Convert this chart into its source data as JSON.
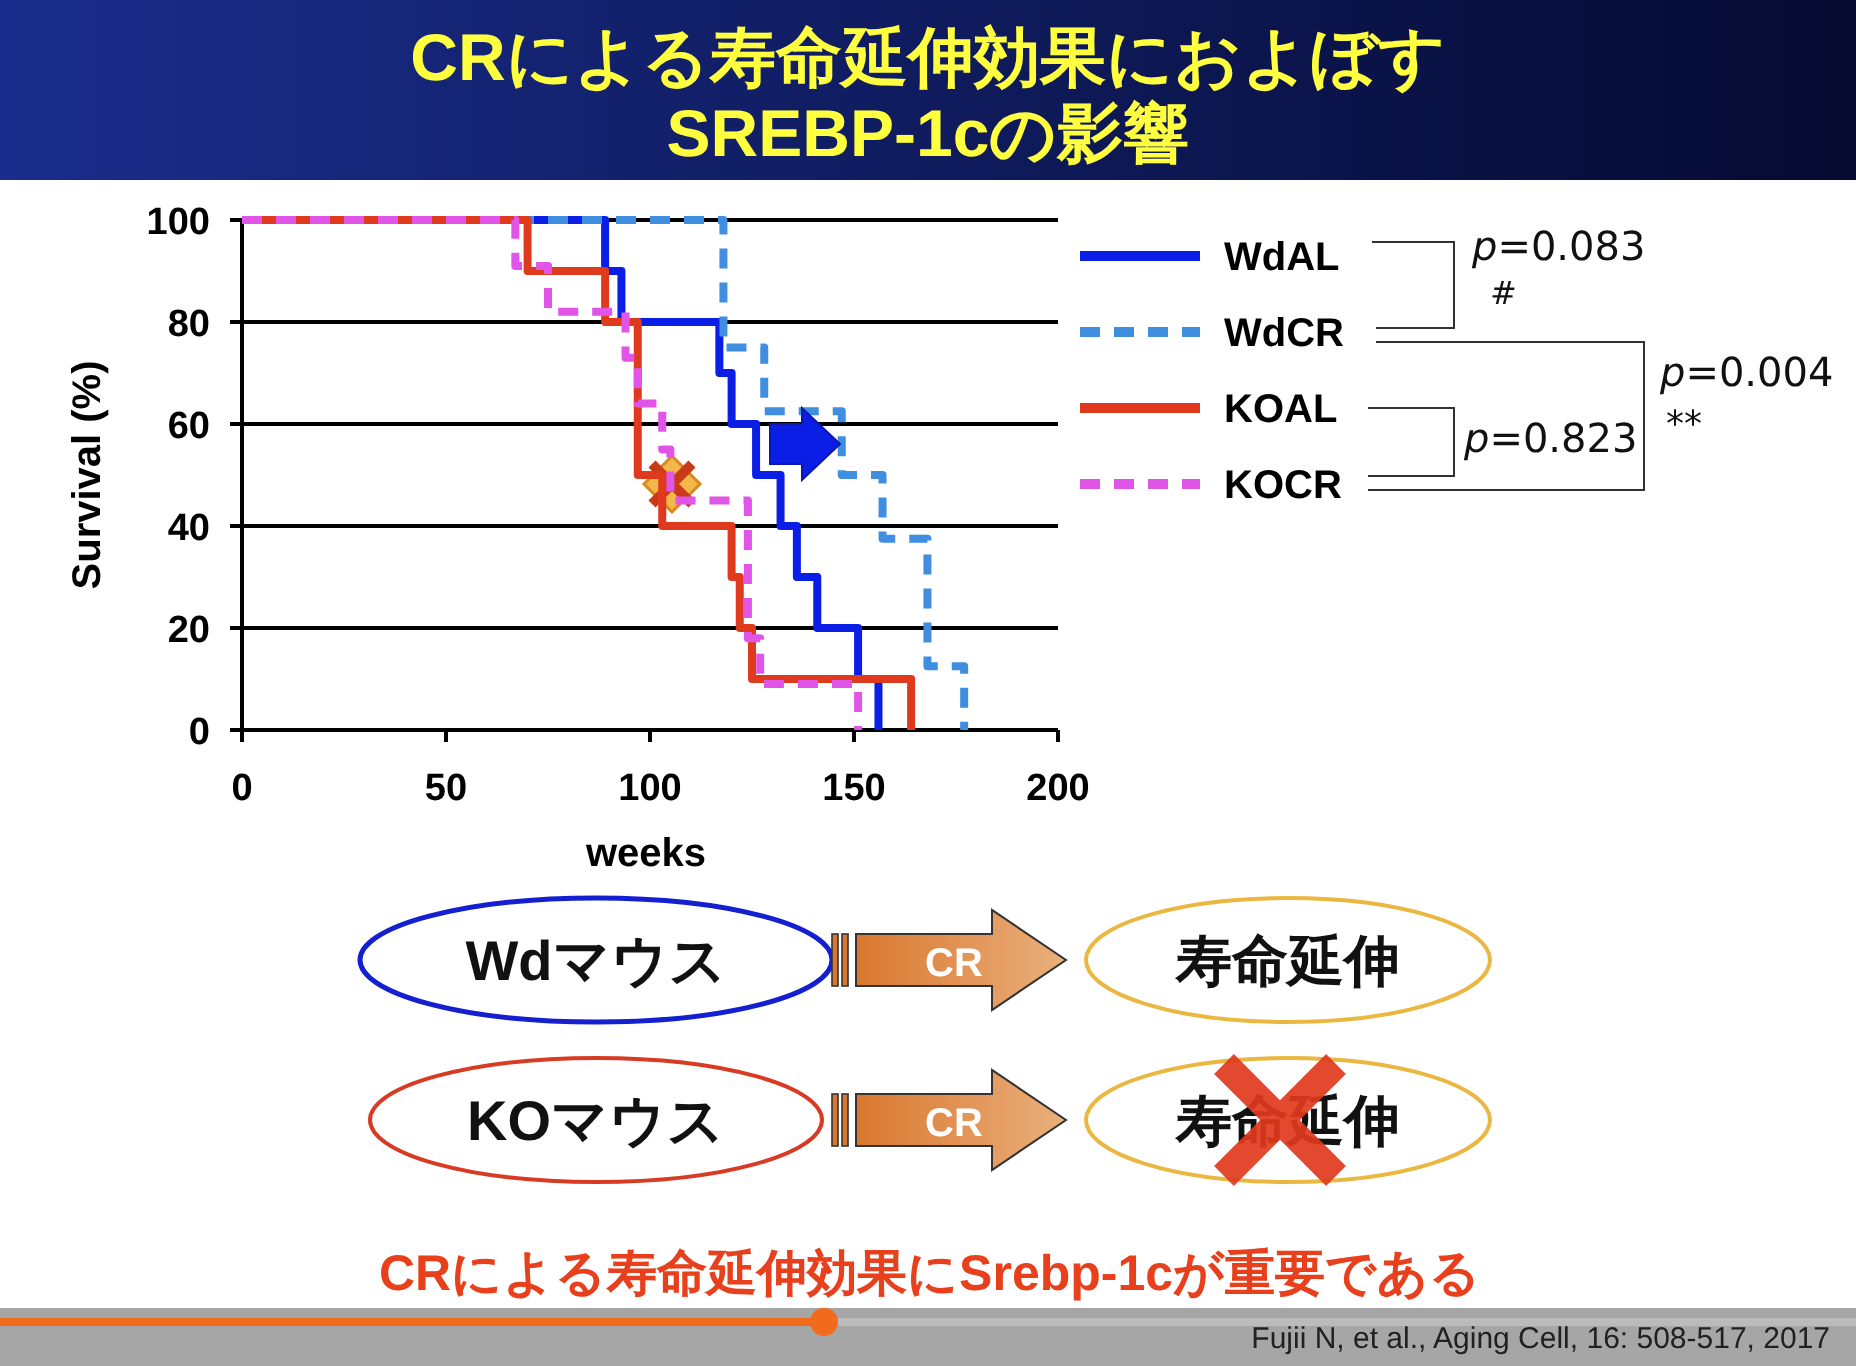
{
  "chart_data": {
    "type": "step",
    "title": "CRによる寿命延伸効果におよぼす\nSREBP-1cの影響",
    "xlabel": "weeks",
    "ylabel": "Survival (%)",
    "xlim": [
      0,
      200
    ],
    "xticks": [
      0,
      50,
      100,
      150,
      200
    ],
    "ylim": [
      0,
      100
    ],
    "yticks": [
      0,
      20,
      40,
      60,
      80,
      100
    ],
    "grid": "y",
    "legend": "right",
    "marker": "none",
    "series": [
      {
        "name": "WdAL",
        "color": "#0a1ee6",
        "line_style": "solid",
        "x": [
          0,
          89,
          93,
          117,
          120,
          126,
          132,
          136,
          141,
          151,
          156
        ],
        "values": [
          100,
          90,
          80,
          70,
          60,
          50,
          40,
          30,
          20,
          10,
          0
        ]
      },
      {
        "name": "WdCR",
        "color": "#3f8ee0",
        "line_style": "dashed",
        "x": [
          0,
          118,
          128,
          147,
          157,
          168,
          177
        ],
        "values": [
          100,
          75,
          62.5,
          50,
          37.5,
          12.5,
          0
        ]
      },
      {
        "name": "KOAL",
        "color": "#e03a1e",
        "line_style": "solid",
        "x": [
          0,
          70,
          89,
          97,
          103,
          120,
          122,
          125,
          164
        ],
        "values": [
          100,
          90,
          80,
          50,
          40,
          30,
          20,
          10,
          0
        ]
      },
      {
        "name": "KOCR",
        "color": "#e055e8",
        "line_style": "dashed",
        "x": [
          0,
          67,
          75,
          94,
          97,
          103,
          105,
          124,
          127,
          151
        ],
        "values": [
          100,
          91,
          82,
          73,
          64,
          55,
          45,
          18,
          9,
          0
        ]
      }
    ],
    "annotations": [
      "p=0.083",
      "#",
      "p=0.823",
      "p=0.004",
      "**",
      "Wdマウス",
      "CR",
      "寿命延伸",
      "KOマウス",
      "CR",
      "寿命延伸",
      "CRによる寿命延伸効果にSrebp-1cが重要である",
      "Fujii N, et al., Aging Cell, 16: 508-517, 2017"
    ]
  }
}
